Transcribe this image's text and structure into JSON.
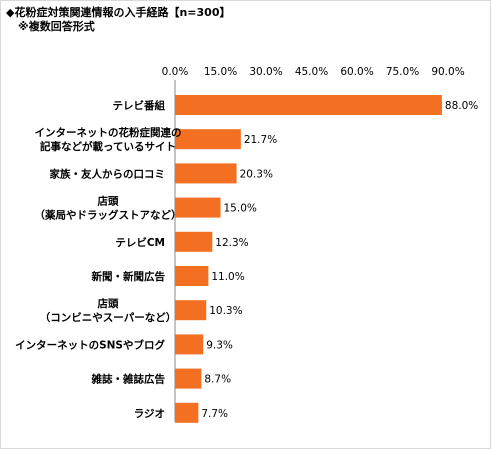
{
  "header": {
    "title": "◆花粉症対策関連情報の入手経路【n=300】",
    "subtitle": "※複数回答形式"
  },
  "chart_data": {
    "type": "bar",
    "orientation": "horizontal",
    "title": "◆花粉症対策関連情報の入手経路【n=300】",
    "subtitle": "※複数回答形式",
    "xlim": [
      0,
      90
    ],
    "tick_labels": [
      "0.0%",
      "15.0%",
      "30.0%",
      "45.0%",
      "60.0%",
      "75.0%",
      "90.0%"
    ],
    "grid": false,
    "bar_color": "#f36f21",
    "categories": [
      [
        "テレビ番組"
      ],
      [
        "インターネットの花粉症関連の",
        "記事などが載っているサイト"
      ],
      [
        "家族・友人からの口コミ"
      ],
      [
        "店頭",
        "（薬局やドラッグストアなど）"
      ],
      [
        "テレビCM"
      ],
      [
        "新聞・新聞広告"
      ],
      [
        "店頭",
        "（コンビニやスーパーなど）"
      ],
      [
        "インターネットのSNSやブログ"
      ],
      [
        "雑誌・雑誌広告"
      ],
      [
        "ラジオ"
      ]
    ],
    "values": [
      88.0,
      21.7,
      20.3,
      15.0,
      12.3,
      11.0,
      10.3,
      9.3,
      8.7,
      7.7
    ],
    "value_labels": [
      "88.0%",
      "21.7%",
      "20.3%",
      "15.0%",
      "12.3%",
      "11.0%",
      "10.3%",
      "9.3%",
      "8.7%",
      "7.7%"
    ]
  }
}
